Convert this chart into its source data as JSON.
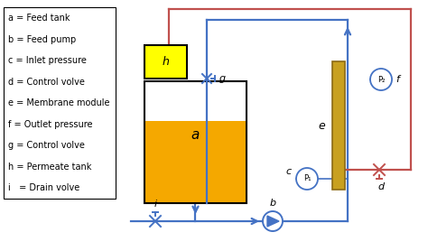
{
  "legend_items": [
    "a = Feed tank",
    "b = Feed pump",
    "c = Inlet pressure",
    "d = Control volve",
    "e = Membrane module",
    "f = Outlet pressure",
    "g = Control volve",
    "h = Permeate tank",
    "i   = Drain volve"
  ],
  "blue_color": "#4472C4",
  "red_color": "#C0504D",
  "yellow_color": "#FFFF00",
  "membrane_fill": "#C8A020",
  "membrane_edge": "#8B6914",
  "liquid_color": "#F5A800",
  "background": "#FFFFFF",
  "label_fontsize": 7.0,
  "lw_pipe": 1.6,
  "lw_valve": 1.4
}
